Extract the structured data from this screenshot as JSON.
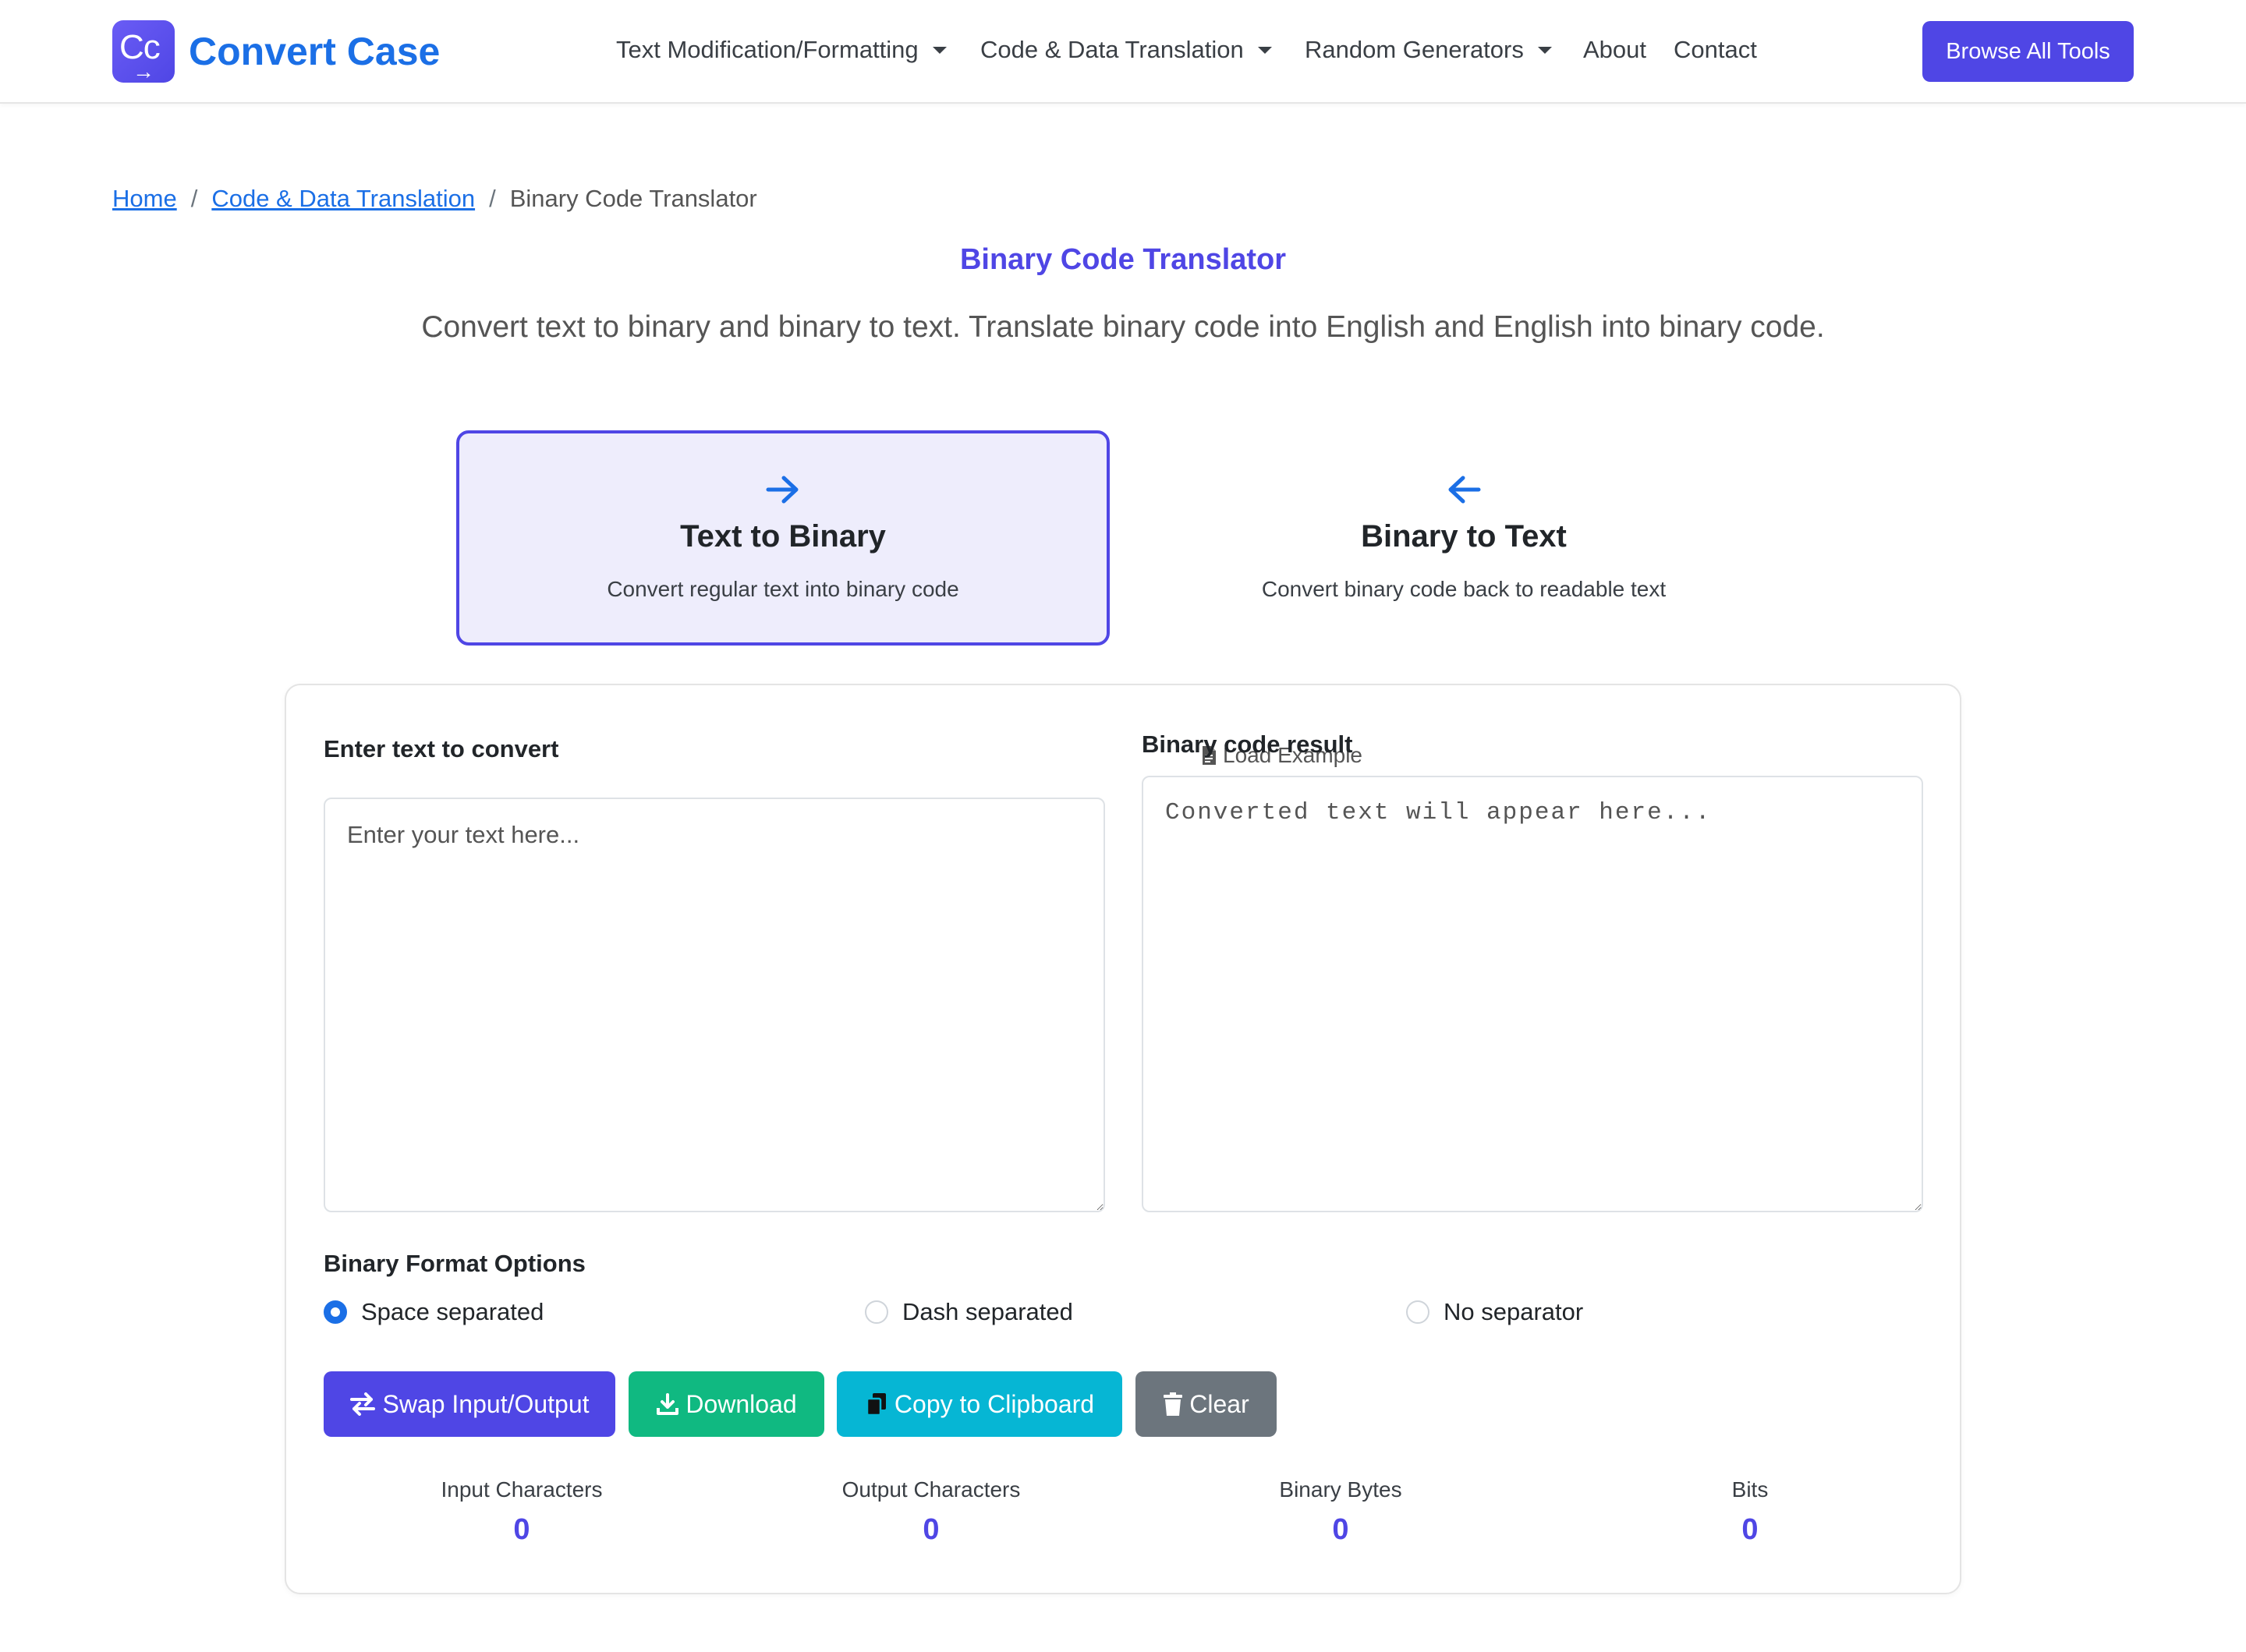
{
  "brand": {
    "logo_text": "Cc",
    "logo_arrow": "→",
    "name": "Convert Case"
  },
  "nav": {
    "items": [
      {
        "label": "Text Modification/Formatting",
        "dropdown": true
      },
      {
        "label": "Code & Data Translation",
        "dropdown": true
      },
      {
        "label": "Random Generators",
        "dropdown": true
      },
      {
        "label": "About",
        "dropdown": false
      },
      {
        "label": "Contact",
        "dropdown": false
      }
    ],
    "browse_label": "Browse All Tools"
  },
  "breadcrumb": {
    "home": "Home",
    "section": "Code & Data Translation",
    "current": "Binary Code Translator",
    "separator": "/"
  },
  "page": {
    "title": "Binary Code Translator",
    "subtitle": "Convert text to binary and binary to text. Translate binary code into English and English into binary code."
  },
  "modes": [
    {
      "icon": "arrow-right-icon",
      "title": "Text to Binary",
      "desc": "Convert regular text into binary code",
      "active": true
    },
    {
      "icon": "arrow-left-icon",
      "title": "Binary to Text",
      "desc": "Convert binary code back to readable text",
      "active": false
    }
  ],
  "converter": {
    "input_label": "Enter text to convert",
    "load_example": "Load Example",
    "input_placeholder": "Enter your text here...",
    "input_value": "",
    "output_label": "Binary code result",
    "output_placeholder": "Converted text will appear here...",
    "output_value": ""
  },
  "format": {
    "label": "Binary Format Options",
    "options": [
      {
        "label": "Space separated",
        "checked": true
      },
      {
        "label": "Dash separated",
        "checked": false
      },
      {
        "label": "No separator",
        "checked": false
      }
    ]
  },
  "actions": {
    "swap": "Swap Input/Output",
    "download": "Download",
    "copy": "Copy to Clipboard",
    "clear": "Clear"
  },
  "stats": [
    {
      "name": "Input Characters",
      "value": "0"
    },
    {
      "name": "Output Characters",
      "value": "0"
    },
    {
      "name": "Binary Bytes",
      "value": "0"
    },
    {
      "name": "Bits",
      "value": "0"
    }
  ],
  "colors": {
    "primary": "#4f46e5",
    "link": "#1b6fe6",
    "download": "#10b981",
    "copy": "#06b6d4",
    "clear": "#6c757d"
  }
}
